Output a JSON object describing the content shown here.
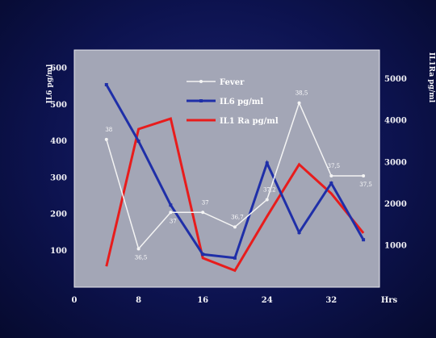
{
  "chart_data": {
    "type": "line",
    "title": "",
    "xlabel": "Hrs",
    "ylabel_left": "IL6 pg/ml",
    "ylabel_right": "IL1Ra pg/ml",
    "x_ticks": [
      "0",
      "8",
      "16",
      "24",
      "32"
    ],
    "xlim": [
      0,
      38
    ],
    "y_left_ticks": [
      "100",
      "200",
      "300",
      "400",
      "500",
      "600"
    ],
    "y_left_lim": [
      0,
      650
    ],
    "y_right_ticks": [
      "1000",
      "2000",
      "3000",
      "4000",
      "5000"
    ],
    "y_right_lim": [
      0,
      5700
    ],
    "legend_position": "top-center",
    "series": [
      {
        "name": "Fever",
        "color": "#f4f4f4",
        "axis": "left",
        "marker": "circle",
        "x": [
          4,
          8,
          12,
          16,
          20,
          24,
          28,
          32,
          36
        ],
        "y": [
          405,
          105,
          205,
          205,
          165,
          240,
          505,
          305,
          305
        ],
        "labels": [
          "38",
          "36,5",
          "37",
          "37",
          "36,7",
          "37,2",
          "38,5",
          "37,5",
          "37,5"
        ]
      },
      {
        "name": "IL6 pg/ml",
        "color": "#1f2fa8",
        "axis": "left",
        "marker": "square",
        "x": [
          4,
          8,
          12,
          16,
          20,
          24,
          28,
          32,
          36
        ],
        "y": [
          555,
          400,
          225,
          90,
          80,
          340,
          150,
          285,
          130
        ]
      },
      {
        "name": "IL1 Ra pg/ml",
        "color": "#e81c1c",
        "axis": "right",
        "marker": "none",
        "x": [
          4,
          8,
          12,
          16,
          20,
          24,
          28,
          32,
          36
        ],
        "y": [
          500,
          3800,
          4050,
          700,
          400,
          1700,
          2950,
          2250,
          1300
        ]
      }
    ]
  }
}
